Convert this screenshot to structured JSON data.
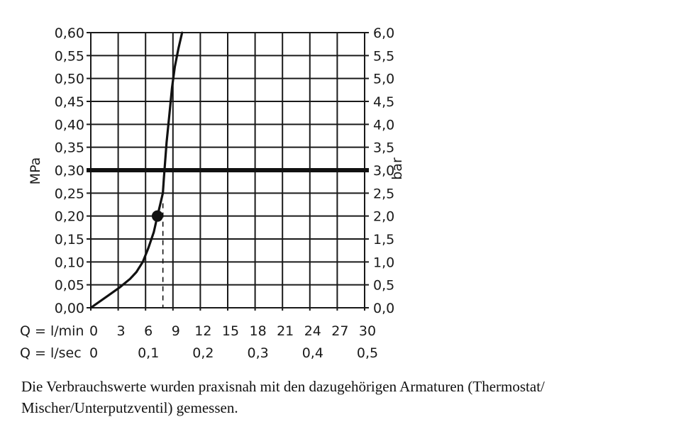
{
  "chart_data": {
    "type": "line",
    "ylabel_left": "MPa",
    "ylabel_right": "bar",
    "y_left_ticks": [
      "0,00",
      "0,05",
      "0,10",
      "0,15",
      "0,20",
      "0,25",
      "0,30",
      "0,35",
      "0,40",
      "0,45",
      "0,50",
      "0,55",
      "0,60"
    ],
    "y_right_ticks": [
      "0,0",
      "0,5",
      "1,0",
      "1,5",
      "2,0",
      "2,5",
      "3,0",
      "3,5",
      "4,0",
      "4,5",
      "5,0",
      "5,5",
      "6,0"
    ],
    "ylim": [
      0,
      0.6
    ],
    "xlim": [
      0,
      30
    ],
    "x_row1_label": "Q = l/min",
    "x_row1_ticks": [
      "0",
      "3",
      "6",
      "9",
      "12",
      "15",
      "18",
      "21",
      "24",
      "27",
      "30"
    ],
    "x_row2_label": "Q = l/sec",
    "x_row2_ticks": [
      "0",
      "0,1",
      "0,2",
      "0,3",
      "0,4",
      "0,5"
    ],
    "grid": true,
    "series": [
      {
        "x": [
          0,
          2,
          3.2,
          4.3,
          5.0,
          5.7,
          6.3,
          6.9,
          7.3,
          7.6,
          7.9,
          8.0,
          8.3,
          8.6,
          8.9,
          9.2,
          9.6,
          10.0
        ],
        "y": [
          0.0,
          0.028,
          0.045,
          0.063,
          0.078,
          0.1,
          0.13,
          0.165,
          0.2,
          0.225,
          0.25,
          0.28,
          0.36,
          0.42,
          0.48,
          0.525,
          0.565,
          0.6
        ]
      }
    ],
    "reference_line": {
      "y": 0.3
    },
    "marker_point": {
      "x": 7.3,
      "y": 0.2
    },
    "drop_line_x": 7.9
  },
  "caption": {
    "line1": "Die Verbrauchswerte wurden praxisnah mit den dazugehörigen Armaturen (Thermostat/",
    "line2": "Mischer/Unterputzventil) gemessen."
  }
}
